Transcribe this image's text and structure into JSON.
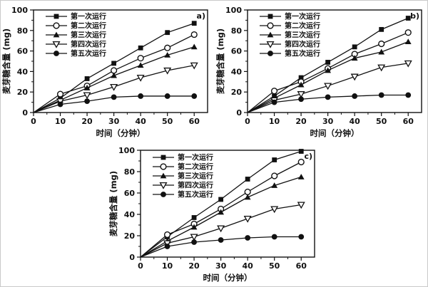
{
  "figure_title": "maltose-content-vs-time-three-panel-figure",
  "colors": {
    "line": "#111111",
    "open_marker_fill": "#ffffff",
    "background": "#ffffff",
    "frame_border": "#c9c9c9"
  },
  "chart_data": [
    {
      "type": "line",
      "panel_label": "a)",
      "xlabel": "时间（分钟）",
      "ylabel": "麦芽糖含量 (mg)",
      "xlim": [
        0,
        65
      ],
      "ylim": [
        0,
        100
      ],
      "xticks": [
        0,
        10,
        20,
        30,
        40,
        50,
        60
      ],
      "yticks": [
        0,
        20,
        40,
        60,
        80,
        100
      ],
      "x_minor_ticks": [
        5,
        15,
        25,
        35,
        45,
        55
      ],
      "y_minor_ticks": [
        10,
        30,
        50,
        70,
        90
      ],
      "grid": false,
      "legend_position": "top-left",
      "x": [
        0,
        10,
        20,
        30,
        40,
        50,
        60
      ],
      "series": [
        {
          "name": "第一次运行",
          "marker": "square-filled",
          "values": [
            0,
            14,
            33,
            48,
            63,
            78,
            87
          ]
        },
        {
          "name": "第二次运行",
          "marker": "circle-open",
          "values": [
            0,
            18,
            26,
            41,
            53,
            63,
            76
          ]
        },
        {
          "name": "第三次运行",
          "marker": "triangle-up-filled",
          "values": [
            0,
            12,
            24,
            36,
            46,
            56,
            64
          ]
        },
        {
          "name": "第四次运行",
          "marker": "triangle-down-open",
          "values": [
            0,
            11,
            17,
            25,
            34,
            41,
            46
          ]
        },
        {
          "name": "第五次运行",
          "marker": "circle-filled",
          "values": [
            0,
            8,
            11,
            15,
            16,
            16,
            16
          ]
        }
      ]
    },
    {
      "type": "line",
      "panel_label": "b)",
      "xlabel": "时间（分钟）",
      "ylabel": "麦芽糖含量 (mg)",
      "xlim": [
        0,
        65
      ],
      "ylim": [
        0,
        100
      ],
      "xticks": [
        0,
        10,
        20,
        30,
        40,
        50,
        60
      ],
      "yticks": [
        0,
        20,
        40,
        60,
        80,
        100
      ],
      "x_minor_ticks": [
        5,
        15,
        25,
        35,
        45,
        55
      ],
      "y_minor_ticks": [
        10,
        30,
        50,
        70,
        90
      ],
      "grid": false,
      "legend_position": "top-left",
      "x": [
        0,
        10,
        20,
        30,
        40,
        50,
        60
      ],
      "series": [
        {
          "name": "第一次运行",
          "marker": "square-filled",
          "values": [
            0,
            16,
            34,
            49,
            64,
            81,
            92
          ]
        },
        {
          "name": "第二次运行",
          "marker": "circle-open",
          "values": [
            0,
            21,
            30,
            43,
            57,
            67,
            78
          ]
        },
        {
          "name": "第三次运行",
          "marker": "triangle-up-filled",
          "values": [
            0,
            14,
            27,
            41,
            53,
            59,
            69
          ]
        },
        {
          "name": "第四次运行",
          "marker": "triangle-down-open",
          "values": [
            0,
            12,
            18,
            26,
            35,
            44,
            48
          ]
        },
        {
          "name": "第五次运行",
          "marker": "circle-filled",
          "values": [
            0,
            10,
            13,
            15,
            16,
            17,
            17
          ]
        }
      ]
    },
    {
      "type": "line",
      "panel_label": "c)",
      "xlabel": "时间（分钟）",
      "ylabel": "麦芽糖含量 (mg)",
      "xlim": [
        0,
        65
      ],
      "ylim": [
        0,
        100
      ],
      "xticks": [
        0,
        10,
        20,
        30,
        40,
        50,
        60
      ],
      "yticks": [
        0,
        20,
        40,
        60,
        80,
        100
      ],
      "x_minor_ticks": [
        5,
        15,
        25,
        35,
        45,
        55
      ],
      "y_minor_ticks": [
        10,
        30,
        50,
        70,
        90
      ],
      "grid": false,
      "legend_position": "top-left",
      "x": [
        0,
        10,
        20,
        30,
        40,
        50,
        60
      ],
      "series": [
        {
          "name": "第一次运行",
          "marker": "square-filled",
          "values": [
            0,
            19,
            37,
            54,
            73,
            91,
            99
          ]
        },
        {
          "name": "第二次运行",
          "marker": "circle-open",
          "values": [
            0,
            21,
            31,
            45,
            61,
            76,
            89
          ]
        },
        {
          "name": "第三次运行",
          "marker": "triangle-up-filled",
          "values": [
            0,
            15,
            28,
            42,
            56,
            67,
            75
          ]
        },
        {
          "name": "第四次运行",
          "marker": "triangle-down-open",
          "values": [
            0,
            13,
            19,
            27,
            36,
            45,
            49
          ]
        },
        {
          "name": "第五次运行",
          "marker": "circle-filled",
          "values": [
            0,
            10,
            14,
            16,
            18,
            19,
            19
          ]
        }
      ]
    }
  ]
}
